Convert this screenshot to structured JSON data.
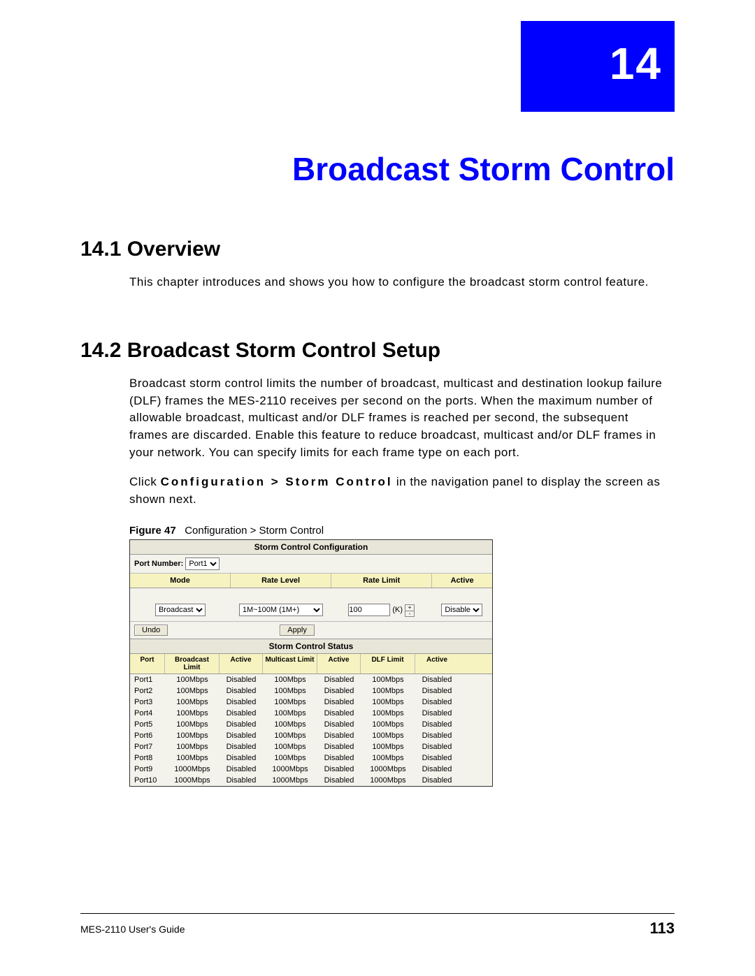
{
  "chapter_number": "14",
  "chapter_title": "Broadcast Storm Control",
  "sections": {
    "overview": {
      "heading": "14.1  Overview",
      "p1": "This chapter introduces and shows you how to configure the broadcast storm control feature."
    },
    "setup": {
      "heading": "14.2  Broadcast Storm Control Setup",
      "p1": "Broadcast storm control limits the number of broadcast, multicast and destination lookup failure (DLF) frames the MES-2110 receives per second on the ports. When the maximum number of allowable broadcast, multicast and/or DLF frames is reached per second, the subsequent frames are discarded. Enable this feature to reduce broadcast, multicast and/or DLF frames in your network. You can specify limits for each frame type on each port.",
      "p2_pre": "Click ",
      "p2_nav": "Configuration > Storm Control",
      "p2_post": " in the navigation panel to display the screen as shown next."
    }
  },
  "figure": {
    "label": "Figure 47",
    "caption": "Configuration > Storm Control"
  },
  "screenshot": {
    "config_title": "Storm Control Configuration",
    "portnum_label": "Port Number:",
    "port_select": "Port1",
    "cfg_headers": {
      "mode": "Mode",
      "level": "Rate Level",
      "limit": "Rate Limit",
      "active": "Active"
    },
    "cfg_values": {
      "mode": "Broadcast",
      "level": "1M~100M (1M+)",
      "limit": "100",
      "unit": "(K)",
      "active": "Disable"
    },
    "buttons": {
      "undo": "Undo",
      "apply": "Apply"
    },
    "status_title": "Storm Control Status",
    "status_headers": {
      "port": "Port",
      "bcl": "Broadcast Limit",
      "a1": "Active",
      "mcl": "Multicast Limit",
      "a2": "Active",
      "dlf": "DLF Limit",
      "a3": "Active"
    },
    "rows": [
      {
        "port": "Port1",
        "bcl": "100Mbps",
        "a1": "Disabled",
        "mcl": "100Mbps",
        "a2": "Disabled",
        "dlf": "100Mbps",
        "a3": "Disabled"
      },
      {
        "port": "Port2",
        "bcl": "100Mbps",
        "a1": "Disabled",
        "mcl": "100Mbps",
        "a2": "Disabled",
        "dlf": "100Mbps",
        "a3": "Disabled"
      },
      {
        "port": "Port3",
        "bcl": "100Mbps",
        "a1": "Disabled",
        "mcl": "100Mbps",
        "a2": "Disabled",
        "dlf": "100Mbps",
        "a3": "Disabled"
      },
      {
        "port": "Port4",
        "bcl": "100Mbps",
        "a1": "Disabled",
        "mcl": "100Mbps",
        "a2": "Disabled",
        "dlf": "100Mbps",
        "a3": "Disabled"
      },
      {
        "port": "Port5",
        "bcl": "100Mbps",
        "a1": "Disabled",
        "mcl": "100Mbps",
        "a2": "Disabled",
        "dlf": "100Mbps",
        "a3": "Disabled"
      },
      {
        "port": "Port6",
        "bcl": "100Mbps",
        "a1": "Disabled",
        "mcl": "100Mbps",
        "a2": "Disabled",
        "dlf": "100Mbps",
        "a3": "Disabled"
      },
      {
        "port": "Port7",
        "bcl": "100Mbps",
        "a1": "Disabled",
        "mcl": "100Mbps",
        "a2": "Disabled",
        "dlf": "100Mbps",
        "a3": "Disabled"
      },
      {
        "port": "Port8",
        "bcl": "100Mbps",
        "a1": "Disabled",
        "mcl": "100Mbps",
        "a2": "Disabled",
        "dlf": "100Mbps",
        "a3": "Disabled"
      },
      {
        "port": "Port9",
        "bcl": "1000Mbps",
        "a1": "Disabled",
        "mcl": "1000Mbps",
        "a2": "Disabled",
        "dlf": "1000Mbps",
        "a3": "Disabled"
      },
      {
        "port": "Port10",
        "bcl": "1000Mbps",
        "a1": "Disabled",
        "mcl": "1000Mbps",
        "a2": "Disabled",
        "dlf": "1000Mbps",
        "a3": "Disabled"
      }
    ]
  },
  "footer": {
    "guide": "MES-2110 User's Guide",
    "page": "113"
  },
  "colors": {
    "accent_blue": "#0000ff",
    "table_header_bg": "#f7f3c0",
    "panel_bg": "#f3f2eb"
  }
}
